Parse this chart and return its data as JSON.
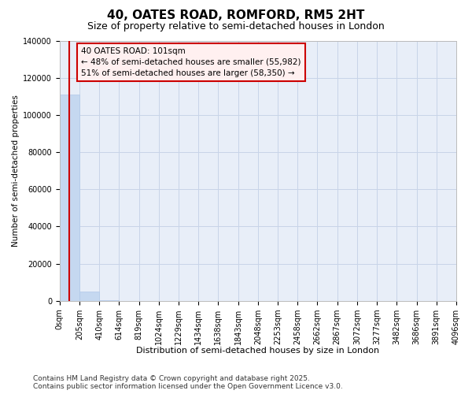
{
  "title": "40, OATES ROAD, ROMFORD, RM5 2HT",
  "subtitle": "Size of property relative to semi-detached houses in London",
  "xlabel": "Distribution of semi-detached houses by size in London",
  "ylabel": "Number of semi-detached properties",
  "property_size": 101,
  "annotation_text": "40 OATES ROAD: 101sqm\n← 48% of semi-detached houses are smaller (55,982)\n51% of semi-detached houses are larger (58,350) →",
  "bin_edges": [
    0,
    205,
    410,
    614,
    819,
    1024,
    1229,
    1434,
    1638,
    1843,
    2048,
    2253,
    2458,
    2662,
    2867,
    3072,
    3277,
    3482,
    3686,
    3891,
    4096
  ],
  "bin_labels": [
    "0sqm",
    "205sqm",
    "410sqm",
    "614sqm",
    "819sqm",
    "1024sqm",
    "1229sqm",
    "1434sqm",
    "1638sqm",
    "1843sqm",
    "2048sqm",
    "2253sqm",
    "2458sqm",
    "2662sqm",
    "2867sqm",
    "3072sqm",
    "3277sqm",
    "3482sqm",
    "3686sqm",
    "3891sqm",
    "4096sqm"
  ],
  "bar_heights": [
    111000,
    5000,
    300,
    80,
    30,
    10,
    5,
    2,
    1,
    1,
    0,
    0,
    0,
    0,
    0,
    0,
    0,
    0,
    0,
    0
  ],
  "bar_color": "#c5d8f0",
  "bar_edge_color": "#b0c8e8",
  "redline_x": 101,
  "redline_color": "#cc0000",
  "background_color": "#ffffff",
  "plot_bg_color": "#e8eef8",
  "grid_color": "#c8d4e8",
  "ylim": [
    0,
    140000
  ],
  "yticks": [
    0,
    20000,
    40000,
    60000,
    80000,
    100000,
    120000,
    140000
  ],
  "footer_line1": "Contains HM Land Registry data © Crown copyright and database right 2025.",
  "footer_line2": "Contains public sector information licensed under the Open Government Licence v3.0.",
  "annotation_box_facecolor": "#fff0f0",
  "annotation_box_edge_color": "#cc0000",
  "title_fontsize": 11,
  "subtitle_fontsize": 9,
  "tick_fontsize": 7,
  "ylabel_fontsize": 7.5,
  "xlabel_fontsize": 8,
  "annotation_fontsize": 7.5,
  "footer_fontsize": 6.5
}
